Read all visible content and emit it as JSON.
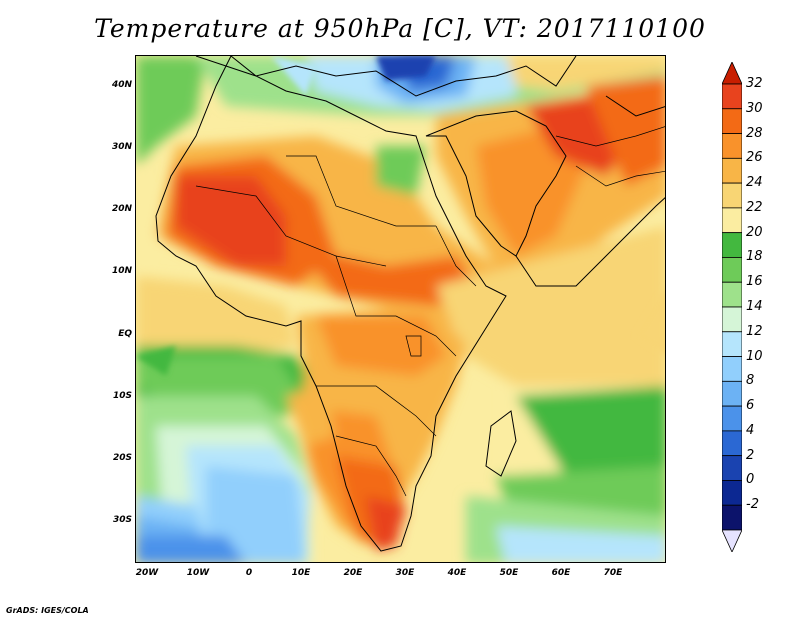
{
  "title": "Temperature at 950hPa [C], VT: 2017110100",
  "footer": "GrADS: IGES/COLA",
  "lat_labels": [
    "40N",
    "30N",
    "20N",
    "10N",
    "EQ",
    "10S",
    "20S",
    "30S"
  ],
  "lon_labels": [
    "20W",
    "10W",
    "0",
    "10E",
    "20E",
    "30E",
    "40E",
    "50E",
    "60E",
    "70E"
  ],
  "colorbar": {
    "labels": [
      "32",
      "30",
      "28",
      "26",
      "24",
      "22",
      "20",
      "18",
      "16",
      "14",
      "12",
      "10",
      "8",
      "6",
      "4",
      "2",
      "0",
      "-2"
    ],
    "colors": [
      "#c81e00",
      "#e8431e",
      "#f36a15",
      "#f9922b",
      "#f8b547",
      "#f8d574",
      "#fbeda1",
      "#43b83f",
      "#6ecb59",
      "#9ee18b",
      "#d5f5d7",
      "#b5e5fc",
      "#91cffc",
      "#6cb2f4",
      "#4b92ea",
      "#2b68d3",
      "#1a43b0",
      "#0c2892",
      "#0c136b",
      "#e6e3ff"
    ],
    "color_ranges": [
      ">32",
      "30-32",
      "28-30",
      "26-28",
      "24-26",
      "22-24",
      "20-22",
      "18-20",
      "16-18",
      "14-16",
      "12-14",
      "10-12",
      "8-10",
      "6-8",
      "4-6",
      "2-4",
      "0-2",
      "-2-0",
      "<-2"
    ]
  }
}
